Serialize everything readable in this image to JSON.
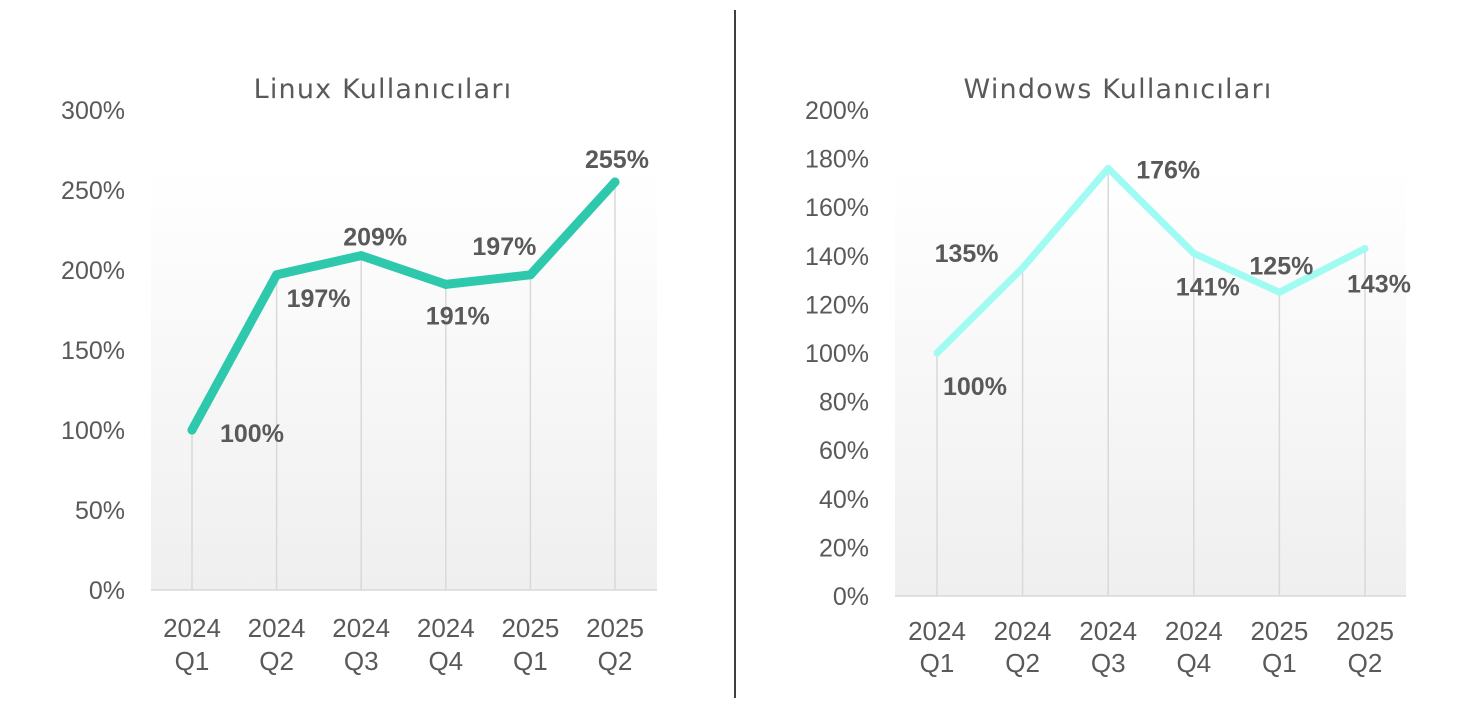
{
  "chart_data": [
    {
      "type": "line",
      "title": "Linux Kullanıcıları",
      "categories": [
        "2024 Q1",
        "2024 Q2",
        "2024 Q3",
        "2024 Q4",
        "2025 Q1",
        "2025 Q2"
      ],
      "y_ticks": [
        "0%",
        "50%",
        "100%",
        "150%",
        "200%",
        "250%",
        "300%"
      ],
      "ylim": [
        0,
        300
      ],
      "series": [
        {
          "values": [
            100,
            197,
            209,
            191,
            197,
            255
          ],
          "color": "#2ec9ad"
        }
      ],
      "data_labels": [
        "100%",
        "197%",
        "209%",
        "191%",
        "197%",
        "255%"
      ],
      "grid": "vertical",
      "legend": "none"
    },
    {
      "type": "line",
      "title": "Windows Kullanıcıları",
      "categories": [
        "2024 Q1",
        "2024 Q2",
        "2024 Q3",
        "2024 Q4",
        "2025 Q1",
        "2025 Q2"
      ],
      "y_ticks": [
        "0%",
        "20%",
        "40%",
        "60%",
        "80%",
        "100%",
        "120%",
        "140%",
        "160%",
        "180%",
        "200%"
      ],
      "ylim": [
        0,
        200
      ],
      "series": [
        {
          "values": [
            100,
            135,
            176,
            141,
            125,
            143
          ],
          "color": "#a0fbf3"
        }
      ],
      "data_labels": [
        "100%",
        "135%",
        "176%",
        "141%",
        "125%",
        "143%"
      ],
      "grid": "vertical",
      "legend": "none"
    }
  ]
}
